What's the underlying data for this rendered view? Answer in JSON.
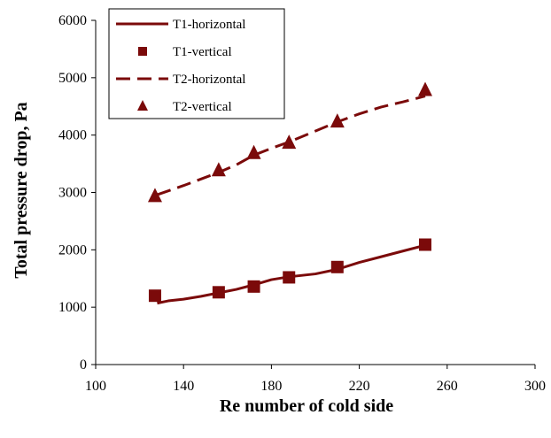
{
  "chart_data": {
    "type": "line",
    "xlabel": "Re number of cold side",
    "ylabel": "Total pressure drop, Pa",
    "xlim": [
      100,
      300
    ],
    "ylim": [
      0,
      6000
    ],
    "x_ticks": [
      100,
      140,
      180,
      220,
      260,
      300
    ],
    "y_ticks": [
      0,
      1000,
      2000,
      3000,
      4000,
      5000,
      6000
    ],
    "grid": false,
    "legend_position": "top-left",
    "color": "#7B0A0A",
    "series": [
      {
        "name": "T1-horizontal",
        "style": "solid-line",
        "x": [
          128,
          133,
          140,
          148,
          156,
          164,
          172,
          180,
          188,
          200,
          210,
          220,
          230,
          240,
          250
        ],
        "y": [
          1070,
          1110,
          1140,
          1190,
          1250,
          1310,
          1390,
          1480,
          1530,
          1580,
          1660,
          1780,
          1880,
          1980,
          2080
        ]
      },
      {
        "name": "T1-vertical",
        "style": "square-marker",
        "x": [
          127,
          156,
          172,
          188,
          210,
          250
        ],
        "y": [
          1200,
          1260,
          1360,
          1520,
          1700,
          2090
        ]
      },
      {
        "name": "T2-horizontal",
        "style": "dashed-line",
        "x": [
          128,
          140,
          156,
          164,
          172,
          180,
          188,
          200,
          210,
          220,
          230,
          240,
          250
        ],
        "y": [
          2960,
          3120,
          3350,
          3480,
          3650,
          3770,
          3880,
          4070,
          4230,
          4370,
          4490,
          4580,
          4680
        ]
      },
      {
        "name": "T2-vertical",
        "style": "triangle-marker",
        "x": [
          127,
          156,
          172,
          188,
          210,
          250
        ],
        "y": [
          2940,
          3390,
          3690,
          3870,
          4240,
          4790
        ]
      }
    ]
  }
}
